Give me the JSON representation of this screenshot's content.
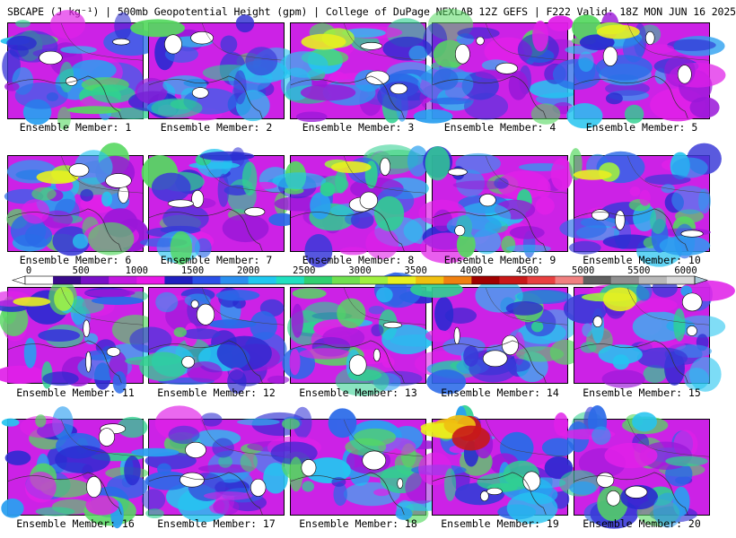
{
  "header": {
    "title": "SBCAPE (J kg⁻¹) | 500mb Geopotential Height (gpm) | College of DuPage NEXLAB 12Z GEFS | F222 Valid: 18Z MON JUN 16 2025"
  },
  "panels": [
    {
      "label": "Ensemble Member: 1"
    },
    {
      "label": "Ensemble Member: 2"
    },
    {
      "label": "Ensemble Member: 3"
    },
    {
      "label": "Ensemble Member: 4"
    },
    {
      "label": "Ensemble Member: 5"
    },
    {
      "label": "Ensemble Member: 6"
    },
    {
      "label": "Ensemble Member: 7"
    },
    {
      "label": "Ensemble Member: 8"
    },
    {
      "label": "Ensemble Member: 9"
    },
    {
      "label": "Ensemble Member: 10"
    },
    {
      "label": "Ensemble Member: 11"
    },
    {
      "label": "Ensemble Member: 12"
    },
    {
      "label": "Ensemble Member: 13"
    },
    {
      "label": "Ensemble Member: 14"
    },
    {
      "label": "Ensemble Member: 15"
    },
    {
      "label": "Ensemble Member: 16"
    },
    {
      "label": "Ensemble Member: 17"
    },
    {
      "label": "Ensemble Member: 18"
    },
    {
      "label": "Ensemble Member: 19"
    },
    {
      "label": "Ensemble Member: 20"
    }
  ],
  "colorbar": {
    "min": 0,
    "max": 6000,
    "tick_labels": [
      "0",
      "500",
      "1000",
      "1500",
      "2000",
      "2500",
      "3000",
      "3500",
      "4000",
      "4500",
      "5000",
      "5500",
      "6000"
    ],
    "colors": [
      "#ffffff",
      "#3a0a8c",
      "#7a10c8",
      "#c418e0",
      "#e818e8",
      "#2020c0",
      "#2a50e8",
      "#2a8ff0",
      "#20c8f0",
      "#20e0c0",
      "#30d070",
      "#70e050",
      "#a0f040",
      "#e8f020",
      "#f0c010",
      "#f08010",
      "#a00000",
      "#c81818",
      "#e84040",
      "#f08080",
      "#606060",
      "#909090",
      "#b8b8b8",
      "#d8d8d8"
    ]
  }
}
